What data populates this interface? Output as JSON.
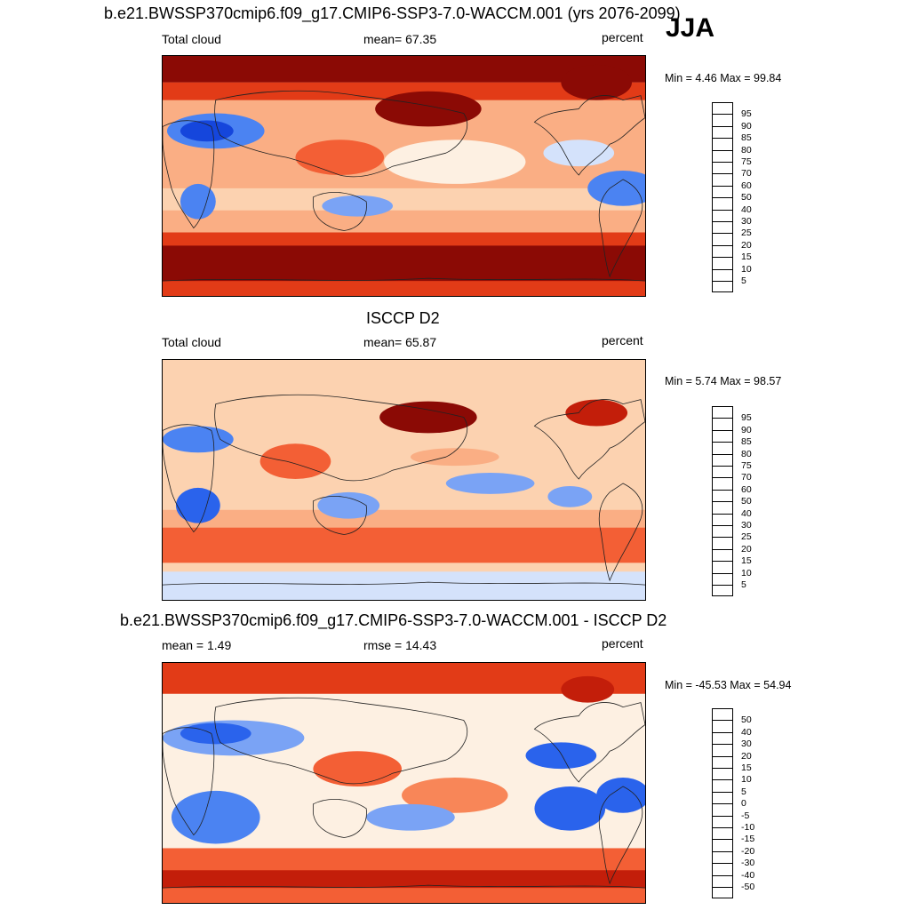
{
  "season": "JJA",
  "palette_abs": [
    "#0a0a8a",
    "#0a23b4",
    "#1546dc",
    "#2a63ec",
    "#4b83f2",
    "#7aa3f5",
    "#a9c4f8",
    "#d4e2fb",
    "#fdf0e2",
    "#fcd2b0",
    "#faae84",
    "#f88658",
    "#f35f35",
    "#e23b17",
    "#c31e0a",
    "#8b0a05"
  ],
  "panels": [
    {
      "title": "b.e21.BWSSP370cmip6.f09_g17.CMIP6-SSP3-7.0-WACCM.001 (yrs 2076-2099)",
      "left_label": "Total cloud",
      "center_label": "mean=  67.35",
      "units": "percent",
      "minmax": "Min =   4.46 Max =  99.84",
      "levels": [
        "95",
        "90",
        "85",
        "80",
        "75",
        "70",
        "60",
        "50",
        "40",
        "30",
        "25",
        "20",
        "15",
        "10",
        "5"
      ],
      "kind": "model"
    },
    {
      "title": "ISCCP D2",
      "left_label": "Total cloud",
      "center_label": "mean=  65.87",
      "units": "percent",
      "minmax": "Min =   5.74 Max =  98.57",
      "levels": [
        "95",
        "90",
        "85",
        "80",
        "75",
        "70",
        "60",
        "50",
        "40",
        "30",
        "25",
        "20",
        "15",
        "10",
        "5"
      ],
      "kind": "obs"
    },
    {
      "title": "b.e21.BWSSP370cmip6.f09_g17.CMIP6-SSP3-7.0-WACCM.001 - ISCCP D2",
      "left_label": "mean =   1.49",
      "center_label": "rmse =  14.43",
      "units": "percent",
      "minmax": "Min = -45.53 Max =  54.94",
      "levels": [
        "50",
        "40",
        "30",
        "20",
        "15",
        "10",
        "5",
        "0",
        "-5",
        "-10",
        "-15",
        "-20",
        "-30",
        "-40",
        "-50"
      ],
      "kind": "diff"
    }
  ]
}
